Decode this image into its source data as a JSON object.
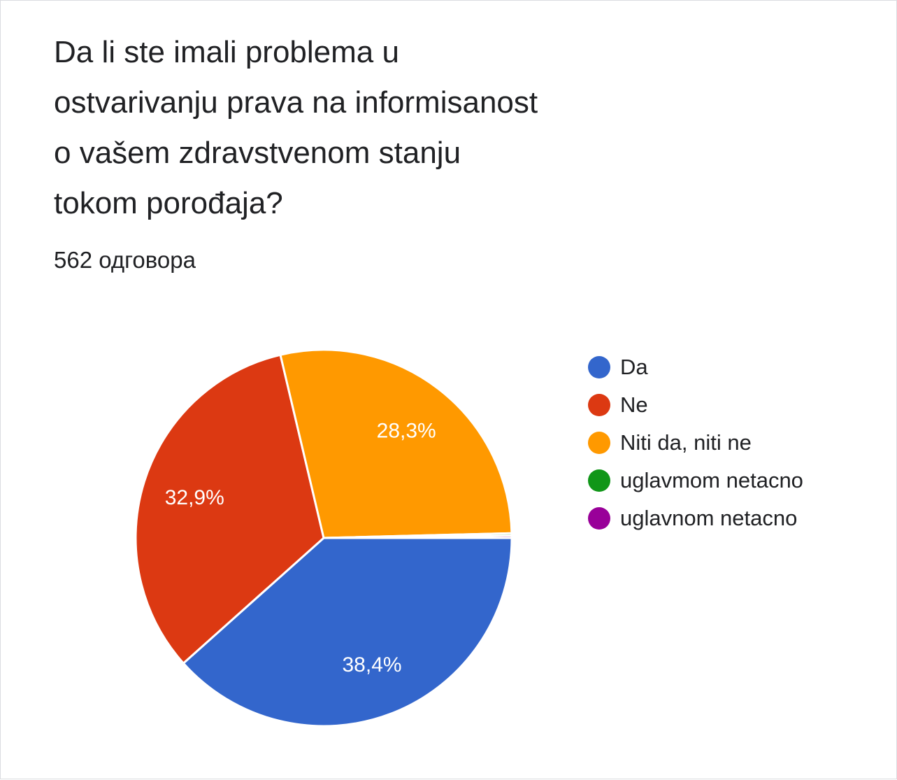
{
  "title_lines": [
    "Da li ste imali problema u",
    "ostvarivanju prava na informisanost",
    "o vašem zdravstvenom stanju",
    "tokom porođaja?"
  ],
  "response_count": "562 одговора",
  "chart_data": {
    "type": "pie",
    "title": "Da li ste imali problema u ostvarivanju prava na informisanost o vašem zdravstvenom stanju tokom porođaja?",
    "categories": [
      "Da",
      "Ne",
      "Niti da, niti ne",
      "uglavmom netacno",
      "uglavnom netacno"
    ],
    "values": [
      38.4,
      32.9,
      28.3,
      0.2,
      0.2
    ],
    "value_labels": [
      "38,4%",
      "32,9%",
      "28,3%",
      "",
      ""
    ],
    "colors": [
      "#3366cc",
      "#dc3912",
      "#ff9900",
      "#109618",
      "#990099"
    ],
    "legend_position": "right"
  }
}
